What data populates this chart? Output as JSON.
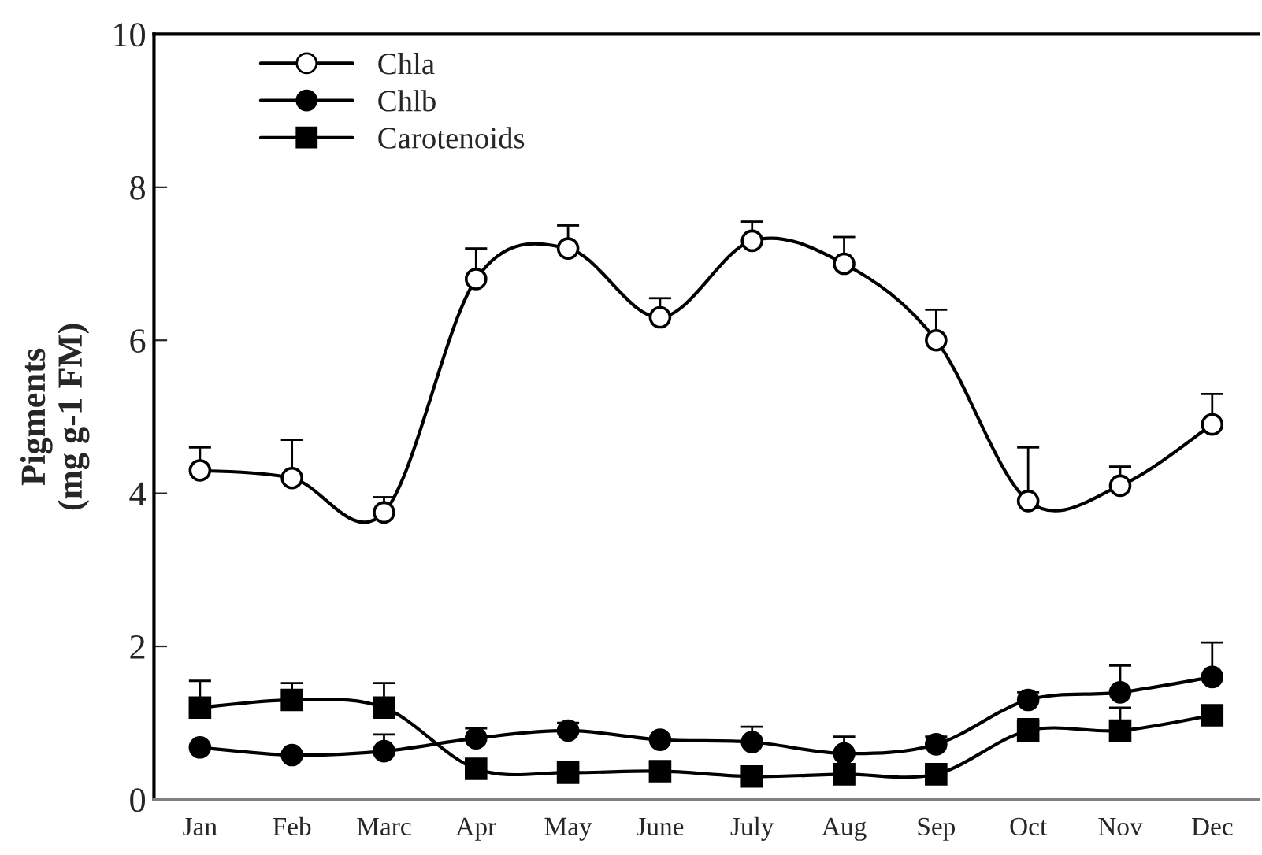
{
  "chart_data": {
    "type": "line",
    "ylabel": "Pigments\n(mg g-1 FM)",
    "categories": [
      "Jan",
      "Feb",
      "Marc",
      "Apr",
      "May",
      "June",
      "July",
      "Aug",
      "Sep",
      "Oct",
      "Nov",
      "Dec"
    ],
    "series": [
      {
        "name": "Chla",
        "color": "#000000",
        "marker": "circle",
        "values": [
          4.3,
          4.2,
          3.75,
          6.8,
          7.2,
          6.3,
          7.3,
          7.0,
          6.0,
          3.9,
          4.1,
          4.9
        ],
        "errors": [
          [
            4.3,
            4.6
          ],
          [
            4.2,
            4.7
          ],
          [
            3.75,
            3.95
          ],
          [
            6.8,
            7.2
          ],
          [
            7.2,
            7.5
          ],
          [
            6.3,
            6.55
          ],
          [
            7.3,
            7.55
          ],
          [
            7.0,
            7.35
          ],
          [
            6.0,
            6.4
          ],
          [
            3.9,
            4.6
          ],
          [
            4.1,
            4.35
          ],
          [
            4.9,
            5.3
          ]
        ]
      },
      {
        "name": "Chlb",
        "color": "#000000",
        "marker": "circle",
        "values": [
          0.68,
          0.58,
          0.63,
          0.8,
          0.9,
          0.78,
          0.75,
          0.6,
          0.72,
          1.3,
          1.4,
          1.6
        ],
        "errors": [
          null,
          null,
          [
            0.63,
            0.85
          ],
          [
            0.8,
            0.93
          ],
          [
            0.9,
            1.0
          ],
          null,
          [
            0.75,
            0.95
          ],
          [
            0.6,
            0.82
          ],
          [
            0.72,
            0.82
          ],
          [
            1.3,
            1.4
          ],
          [
            1.4,
            1.75
          ],
          [
            1.6,
            2.05
          ]
        ]
      },
      {
        "name": "Carotenoids",
        "color": "#000000",
        "marker": "square",
        "values": [
          1.2,
          1.3,
          1.2,
          0.4,
          0.35,
          0.37,
          0.3,
          0.33,
          0.33,
          0.9,
          0.9,
          1.1
        ],
        "errors": [
          [
            1.2,
            1.55
          ],
          [
            1.3,
            1.52
          ],
          [
            1.2,
            1.52
          ],
          null,
          null,
          [
            0.37,
            0.47
          ],
          null,
          null,
          null,
          [
            0.9,
            1.05
          ],
          [
            0.9,
            1.2
          ],
          null
        ]
      }
    ],
    "ylim": [
      0,
      10
    ],
    "yticks": [
      0,
      2,
      4,
      6,
      8,
      10
    ],
    "grid": false,
    "legend": "top left",
    "line_style": "solid"
  }
}
